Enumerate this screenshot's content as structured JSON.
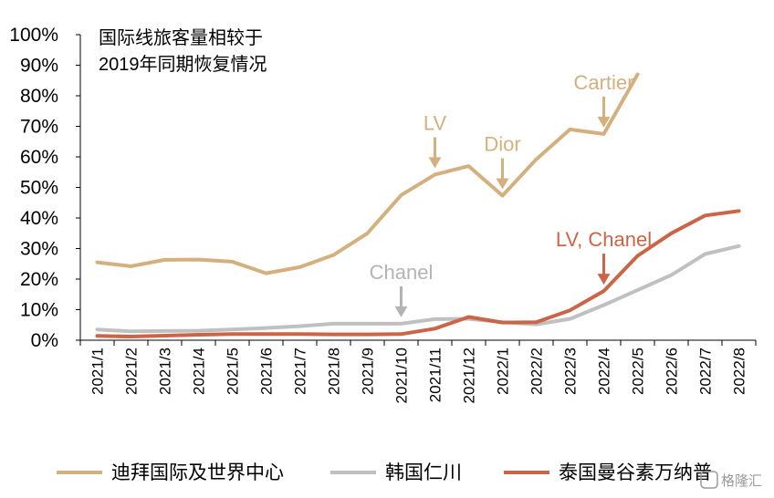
{
  "chart_data": {
    "type": "line",
    "title_lines": [
      "国际线旅客量相较于",
      "2019年同期恢复情况"
    ],
    "categories": [
      "2021/1",
      "2021/2",
      "2021/3",
      "2021/4",
      "2021/5",
      "2021/6",
      "2021/7",
      "2021/8",
      "2021/9",
      "2021/10",
      "2021/11",
      "2021/12",
      "2022/1",
      "2022/2",
      "2022/3",
      "2022/4",
      "2022/5",
      "2022/6",
      "2022/7",
      "2022/8"
    ],
    "y_ticks": [
      "0%",
      "10%",
      "20%",
      "30%",
      "40%",
      "50%",
      "60%",
      "70%",
      "80%",
      "90%",
      "100%"
    ],
    "ylim": [
      0,
      100
    ],
    "grid": false,
    "legend_position": "bottom",
    "series": [
      {
        "name": "迪拜国际及世界中心",
        "color": "#d4b07f",
        "values": [
          25.5,
          24.2,
          26.3,
          26.4,
          25.7,
          21.9,
          23.9,
          27.9,
          35.0,
          47.5,
          54.2,
          57.0,
          47.3,
          59.2,
          69.0,
          67.5,
          87.0,
          null,
          null,
          null
        ]
      },
      {
        "name": "韩国仁川",
        "color": "#c0c0c0",
        "values": [
          3.5,
          2.9,
          3.0,
          3.1,
          3.5,
          4.0,
          4.6,
          5.4,
          5.4,
          5.4,
          6.9,
          7.0,
          5.9,
          5.2,
          7.0,
          11.5,
          16.4,
          21.3,
          28.2,
          30.8
        ]
      },
      {
        "name": "泰国曼谷素万纳普",
        "color": "#cb6548",
        "values": [
          1.4,
          1.2,
          1.5,
          1.8,
          2.0,
          2.0,
          2.0,
          1.9,
          1.9,
          2.0,
          3.8,
          7.6,
          5.8,
          5.9,
          9.8,
          16.1,
          27.6,
          35.0,
          40.8,
          42.3
        ]
      }
    ],
    "annotations": [
      {
        "text": "Cartier",
        "series": "迪拜国际及世界中心",
        "category": "2022/4",
        "color": "#d4b07f"
      },
      {
        "text": "LV",
        "series": "迪拜国际及世界中心",
        "category": "2021/11",
        "color": "#d4b07f"
      },
      {
        "text": "Dior",
        "series": "迪拜国际及世界中心",
        "category": "2022/1",
        "color": "#d4b07f"
      },
      {
        "text": "LV, Chanel",
        "series": "泰国曼谷素万纳普",
        "category": "2022/4",
        "color": "#cb6548"
      },
      {
        "text": "Chanel",
        "series": "韩国仁川",
        "category": "2021/10",
        "color": "#b4b4b4"
      }
    ]
  },
  "watermark": "格隆汇"
}
